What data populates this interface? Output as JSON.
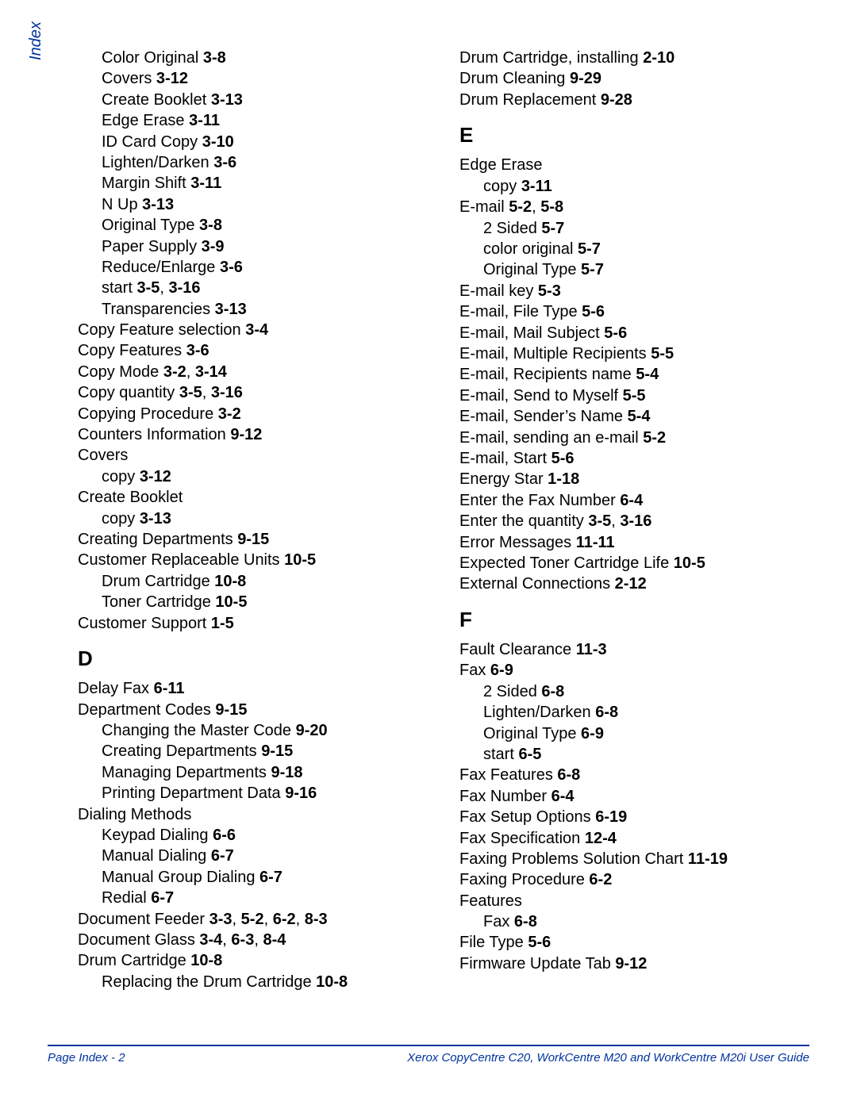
{
  "colors": {
    "accent": "#0033a0",
    "text": "#000000",
    "background": "#ffffff"
  },
  "typography": {
    "body_fontsize": 20,
    "heading_fontsize": 26,
    "footer_fontsize": 15,
    "font_family": "Arial"
  },
  "side_tab": "Index",
  "footer": {
    "left": "Page Index - 2",
    "right": "Xerox CopyCentre C20, WorkCentre M20 and WorkCentre M20i User Guide"
  },
  "columns": [
    {
      "items": [
        {
          "indent": 1,
          "parts": [
            {
              "t": "Color Original "
            },
            {
              "t": "3-8",
              "b": true
            }
          ]
        },
        {
          "indent": 1,
          "parts": [
            {
              "t": "Covers "
            },
            {
              "t": "3-12",
              "b": true
            }
          ]
        },
        {
          "indent": 1,
          "parts": [
            {
              "t": "Create Booklet "
            },
            {
              "t": "3-13",
              "b": true
            }
          ]
        },
        {
          "indent": 1,
          "parts": [
            {
              "t": "Edge Erase "
            },
            {
              "t": "3-11",
              "b": true
            }
          ]
        },
        {
          "indent": 1,
          "parts": [
            {
              "t": "ID Card Copy "
            },
            {
              "t": "3-10",
              "b": true
            }
          ]
        },
        {
          "indent": 1,
          "parts": [
            {
              "t": "Lighten/Darken "
            },
            {
              "t": "3-6",
              "b": true
            }
          ]
        },
        {
          "indent": 1,
          "parts": [
            {
              "t": "Margin Shift "
            },
            {
              "t": "3-11",
              "b": true
            }
          ]
        },
        {
          "indent": 1,
          "parts": [
            {
              "t": "N Up "
            },
            {
              "t": "3-13",
              "b": true
            }
          ]
        },
        {
          "indent": 1,
          "parts": [
            {
              "t": "Original Type "
            },
            {
              "t": "3-8",
              "b": true
            }
          ]
        },
        {
          "indent": 1,
          "parts": [
            {
              "t": "Paper Supply "
            },
            {
              "t": "3-9",
              "b": true
            }
          ]
        },
        {
          "indent": 1,
          "parts": [
            {
              "t": "Reduce/Enlarge "
            },
            {
              "t": "3-6",
              "b": true
            }
          ]
        },
        {
          "indent": 1,
          "parts": [
            {
              "t": "start "
            },
            {
              "t": "3-5",
              "b": true
            },
            {
              "t": ", "
            },
            {
              "t": "3-16",
              "b": true
            }
          ]
        },
        {
          "indent": 1,
          "parts": [
            {
              "t": "Transparencies "
            },
            {
              "t": "3-13",
              "b": true
            }
          ]
        },
        {
          "indent": 0,
          "parts": [
            {
              "t": "Copy Feature selection "
            },
            {
              "t": "3-4",
              "b": true
            }
          ]
        },
        {
          "indent": 0,
          "parts": [
            {
              "t": "Copy Features "
            },
            {
              "t": "3-6",
              "b": true
            }
          ]
        },
        {
          "indent": 0,
          "parts": [
            {
              "t": "Copy Mode "
            },
            {
              "t": "3-2",
              "b": true
            },
            {
              "t": ", "
            },
            {
              "t": "3-14",
              "b": true
            }
          ]
        },
        {
          "indent": 0,
          "parts": [
            {
              "t": "Copy quantity "
            },
            {
              "t": "3-5",
              "b": true
            },
            {
              "t": ", "
            },
            {
              "t": "3-16",
              "b": true
            }
          ]
        },
        {
          "indent": 0,
          "parts": [
            {
              "t": "Copying Procedure "
            },
            {
              "t": "3-2",
              "b": true
            }
          ]
        },
        {
          "indent": 0,
          "parts": [
            {
              "t": "Counters Information "
            },
            {
              "t": "9-12",
              "b": true
            }
          ]
        },
        {
          "indent": 0,
          "parts": [
            {
              "t": "Covers"
            }
          ]
        },
        {
          "indent": 1,
          "parts": [
            {
              "t": "copy "
            },
            {
              "t": "3-12",
              "b": true
            }
          ]
        },
        {
          "indent": 0,
          "parts": [
            {
              "t": "Create Booklet"
            }
          ]
        },
        {
          "indent": 1,
          "parts": [
            {
              "t": "copy "
            },
            {
              "t": "3-13",
              "b": true
            }
          ]
        },
        {
          "indent": 0,
          "parts": [
            {
              "t": "Creating Departments "
            },
            {
              "t": "9-15",
              "b": true
            }
          ]
        },
        {
          "indent": 0,
          "parts": [
            {
              "t": "Customer Replaceable Units "
            },
            {
              "t": "10-5",
              "b": true
            }
          ]
        },
        {
          "indent": 1,
          "parts": [
            {
              "t": "Drum Cartridge "
            },
            {
              "t": "10-8",
              "b": true
            }
          ]
        },
        {
          "indent": 1,
          "parts": [
            {
              "t": "Toner Cartridge "
            },
            {
              "t": "10-5",
              "b": true
            }
          ]
        },
        {
          "indent": 0,
          "parts": [
            {
              "t": "Customer Support "
            },
            {
              "t": "1-5",
              "b": true
            }
          ]
        },
        {
          "heading": "D"
        },
        {
          "indent": 0,
          "parts": [
            {
              "t": "Delay Fax "
            },
            {
              "t": "6-11",
              "b": true
            }
          ]
        },
        {
          "indent": 0,
          "parts": [
            {
              "t": "Department Codes "
            },
            {
              "t": "9-15",
              "b": true
            }
          ]
        },
        {
          "indent": 1,
          "parts": [
            {
              "t": "Changing the Master Code "
            },
            {
              "t": "9-20",
              "b": true
            }
          ]
        },
        {
          "indent": 1,
          "parts": [
            {
              "t": "Creating Departments "
            },
            {
              "t": "9-15",
              "b": true
            }
          ]
        },
        {
          "indent": 1,
          "parts": [
            {
              "t": "Managing Departments "
            },
            {
              "t": "9-18",
              "b": true
            }
          ]
        },
        {
          "indent": 1,
          "parts": [
            {
              "t": "Printing Department Data "
            },
            {
              "t": "9-16",
              "b": true
            }
          ]
        },
        {
          "indent": 0,
          "parts": [
            {
              "t": "Dialing Methods"
            }
          ]
        },
        {
          "indent": 1,
          "parts": [
            {
              "t": "Keypad Dialing "
            },
            {
              "t": "6-6",
              "b": true
            }
          ]
        },
        {
          "indent": 1,
          "parts": [
            {
              "t": "Manual Dialing "
            },
            {
              "t": "6-7",
              "b": true
            }
          ]
        },
        {
          "indent": 1,
          "parts": [
            {
              "t": "Manual Group Dialing "
            },
            {
              "t": "6-7",
              "b": true
            }
          ]
        },
        {
          "indent": 1,
          "parts": [
            {
              "t": "Redial "
            },
            {
              "t": "6-7",
              "b": true
            }
          ]
        },
        {
          "indent": 0,
          "parts": [
            {
              "t": "Document Feeder "
            },
            {
              "t": "3-3",
              "b": true
            },
            {
              "t": ", "
            },
            {
              "t": "5-2",
              "b": true
            },
            {
              "t": ", "
            },
            {
              "t": "6-2",
              "b": true
            },
            {
              "t": ", "
            },
            {
              "t": "8-3",
              "b": true
            }
          ]
        },
        {
          "indent": 0,
          "parts": [
            {
              "t": "Document Glass "
            },
            {
              "t": "3-4",
              "b": true
            },
            {
              "t": ", "
            },
            {
              "t": "6-3",
              "b": true
            },
            {
              "t": ", "
            },
            {
              "t": "8-4",
              "b": true
            }
          ]
        },
        {
          "indent": 0,
          "parts": [
            {
              "t": "Drum Cartridge "
            },
            {
              "t": "10-8",
              "b": true
            }
          ]
        },
        {
          "indent": 1,
          "parts": [
            {
              "t": "Replacing the Drum Cartridge "
            },
            {
              "t": "10-8",
              "b": true
            }
          ]
        }
      ]
    },
    {
      "items": [
        {
          "indent": 0,
          "parts": [
            {
              "t": "Drum Cartridge, installing "
            },
            {
              "t": "2-10",
              "b": true
            }
          ]
        },
        {
          "indent": 0,
          "parts": [
            {
              "t": "Drum Cleaning "
            },
            {
              "t": "9-29",
              "b": true
            }
          ]
        },
        {
          "indent": 0,
          "parts": [
            {
              "t": "Drum Replacement "
            },
            {
              "t": "9-28",
              "b": true
            }
          ]
        },
        {
          "heading": "E"
        },
        {
          "indent": 0,
          "parts": [
            {
              "t": "Edge Erase"
            }
          ]
        },
        {
          "indent": 1,
          "parts": [
            {
              "t": "copy "
            },
            {
              "t": "3-11",
              "b": true
            }
          ]
        },
        {
          "indent": 0,
          "parts": [
            {
              "t": "E-mail "
            },
            {
              "t": "5-2",
              "b": true
            },
            {
              "t": ", "
            },
            {
              "t": "5-8",
              "b": true
            }
          ]
        },
        {
          "indent": 1,
          "parts": [
            {
              "t": "2 Sided "
            },
            {
              "t": "5-7",
              "b": true
            }
          ]
        },
        {
          "indent": 1,
          "parts": [
            {
              "t": "color original "
            },
            {
              "t": "5-7",
              "b": true
            }
          ]
        },
        {
          "indent": 1,
          "parts": [
            {
              "t": "Original Type "
            },
            {
              "t": "5-7",
              "b": true
            }
          ]
        },
        {
          "indent": 0,
          "parts": [
            {
              "t": "E-mail key "
            },
            {
              "t": "5-3",
              "b": true
            }
          ]
        },
        {
          "indent": 0,
          "parts": [
            {
              "t": "E-mail, File Type "
            },
            {
              "t": "5-6",
              "b": true
            }
          ]
        },
        {
          "indent": 0,
          "parts": [
            {
              "t": "E-mail, Mail Subject "
            },
            {
              "t": "5-6",
              "b": true
            }
          ]
        },
        {
          "indent": 0,
          "parts": [
            {
              "t": "E-mail, Multiple Recipients "
            },
            {
              "t": "5-5",
              "b": true
            }
          ]
        },
        {
          "indent": 0,
          "parts": [
            {
              "t": "E-mail, Recipients name "
            },
            {
              "t": "5-4",
              "b": true
            }
          ]
        },
        {
          "indent": 0,
          "parts": [
            {
              "t": "E-mail, Send to Myself "
            },
            {
              "t": "5-5",
              "b": true
            }
          ]
        },
        {
          "indent": 0,
          "parts": [
            {
              "t": "E-mail, Sender’s Name "
            },
            {
              "t": "5-4",
              "b": true
            }
          ]
        },
        {
          "indent": 0,
          "parts": [
            {
              "t": "E-mail, sending an e-mail "
            },
            {
              "t": "5-2",
              "b": true
            }
          ]
        },
        {
          "indent": 0,
          "parts": [
            {
              "t": "E-mail, Start "
            },
            {
              "t": "5-6",
              "b": true
            }
          ]
        },
        {
          "indent": 0,
          "parts": [
            {
              "t": "Energy Star "
            },
            {
              "t": "1-18",
              "b": true
            }
          ]
        },
        {
          "indent": 0,
          "parts": [
            {
              "t": "Enter the Fax Number "
            },
            {
              "t": "6-4",
              "b": true
            }
          ]
        },
        {
          "indent": 0,
          "parts": [
            {
              "t": "Enter the quantity "
            },
            {
              "t": "3-5",
              "b": true
            },
            {
              "t": ", "
            },
            {
              "t": "3-16",
              "b": true
            }
          ]
        },
        {
          "indent": 0,
          "parts": [
            {
              "t": "Error Messages "
            },
            {
              "t": "11-11",
              "b": true
            }
          ]
        },
        {
          "indent": 0,
          "parts": [
            {
              "t": "Expected Toner Cartridge Life "
            },
            {
              "t": "10-5",
              "b": true
            }
          ]
        },
        {
          "indent": 0,
          "parts": [
            {
              "t": "External Connections "
            },
            {
              "t": "2-12",
              "b": true
            }
          ]
        },
        {
          "heading": "F"
        },
        {
          "indent": 0,
          "parts": [
            {
              "t": "Fault Clearance "
            },
            {
              "t": "11-3",
              "b": true
            }
          ]
        },
        {
          "indent": 0,
          "parts": [
            {
              "t": "Fax "
            },
            {
              "t": "6-9",
              "b": true
            }
          ]
        },
        {
          "indent": 1,
          "parts": [
            {
              "t": "2 Sided "
            },
            {
              "t": "6-8",
              "b": true
            }
          ]
        },
        {
          "indent": 1,
          "parts": [
            {
              "t": "Lighten/Darken "
            },
            {
              "t": "6-8",
              "b": true
            }
          ]
        },
        {
          "indent": 1,
          "parts": [
            {
              "t": "Original Type "
            },
            {
              "t": "6-9",
              "b": true
            }
          ]
        },
        {
          "indent": 1,
          "parts": [
            {
              "t": "start "
            },
            {
              "t": "6-5",
              "b": true
            }
          ]
        },
        {
          "indent": 0,
          "parts": [
            {
              "t": "Fax Features "
            },
            {
              "t": "6-8",
              "b": true
            }
          ]
        },
        {
          "indent": 0,
          "parts": [
            {
              "t": "Fax Number "
            },
            {
              "t": "6-4",
              "b": true
            }
          ]
        },
        {
          "indent": 0,
          "parts": [
            {
              "t": "Fax Setup Options "
            },
            {
              "t": "6-19",
              "b": true
            }
          ]
        },
        {
          "indent": 0,
          "parts": [
            {
              "t": "Fax Specification "
            },
            {
              "t": "12-4",
              "b": true
            }
          ]
        },
        {
          "indent": 0,
          "parts": [
            {
              "t": "Faxing Problems Solution Chart "
            },
            {
              "t": "11-19",
              "b": true
            }
          ]
        },
        {
          "indent": 0,
          "parts": [
            {
              "t": "Faxing Procedure "
            },
            {
              "t": "6-2",
              "b": true
            }
          ]
        },
        {
          "indent": 0,
          "parts": [
            {
              "t": "Features"
            }
          ]
        },
        {
          "indent": 1,
          "parts": [
            {
              "t": "Fax "
            },
            {
              "t": "6-8",
              "b": true
            }
          ]
        },
        {
          "indent": 0,
          "parts": [
            {
              "t": "File Type "
            },
            {
              "t": "5-6",
              "b": true
            }
          ]
        },
        {
          "indent": 0,
          "parts": [
            {
              "t": "Firmware Update Tab "
            },
            {
              "t": "9-12",
              "b": true
            }
          ]
        }
      ]
    }
  ]
}
